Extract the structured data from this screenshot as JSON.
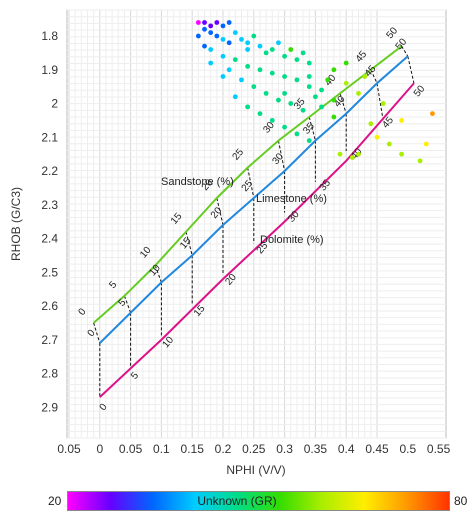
{
  "chart_data": {
    "type": "scatter",
    "xlabel": "NPHI (V/V)",
    "ylabel": "RHOB (G/C3)",
    "xlim": [
      0.05,
      0.55
    ],
    "ylim": [
      2.9,
      1.8
    ],
    "y_inverted": true,
    "grid": true,
    "xticks": [
      "0.05",
      "0",
      "0.05",
      "0.1",
      "0.15",
      "0.2",
      "0.25",
      "0.3",
      "0.35",
      "0.4",
      "0.45",
      "0.5",
      "0.55"
    ],
    "yticks": [
      "1.8",
      "1.9",
      "2",
      "2.1",
      "2.2",
      "2.3",
      "2.4",
      "2.5",
      "2.6",
      "2.7",
      "2.8",
      "2.9"
    ],
    "lithology_lines": [
      {
        "name": "Sandstone (%)",
        "color": "#66cc22",
        "points": [
          [
            -0.01,
            2.65
          ],
          [
            0.04,
            2.57
          ],
          [
            0.09,
            2.48
          ],
          [
            0.14,
            2.38
          ],
          [
            0.19,
            2.28
          ],
          [
            0.24,
            2.19
          ],
          [
            0.29,
            2.11
          ],
          [
            0.34,
            2.04
          ],
          [
            0.39,
            1.97
          ],
          [
            0.44,
            1.9
          ],
          [
            0.49,
            1.83
          ]
        ],
        "labels": [
          "0",
          "5",
          "10",
          "15",
          "20",
          "25",
          "30",
          "35",
          "40",
          "45",
          "50"
        ]
      },
      {
        "name": "Limestone (%)",
        "color": "#2288dd",
        "points": [
          [
            0.0,
            2.71
          ],
          [
            0.05,
            2.62
          ],
          [
            0.1,
            2.53
          ],
          [
            0.15,
            2.45
          ],
          [
            0.2,
            2.36
          ],
          [
            0.25,
            2.28
          ],
          [
            0.3,
            2.2
          ],
          [
            0.35,
            2.11
          ],
          [
            0.4,
            2.03
          ],
          [
            0.45,
            1.94
          ],
          [
            0.5,
            1.86
          ]
        ],
        "labels": [
          "0",
          "5",
          "10",
          "15",
          "20",
          "25",
          "30",
          "35",
          "40",
          "45",
          "50"
        ]
      },
      {
        "name": "Dolomite (%)",
        "color": "#dd1188",
        "points": [
          [
            0.0,
            2.87
          ],
          [
            0.1,
            2.7
          ],
          [
            0.2,
            2.52
          ],
          [
            0.3,
            2.35
          ],
          [
            0.4,
            2.17
          ],
          [
            0.51,
            1.94
          ]
        ],
        "labels": [
          "0",
          "5",
          "10",
          "15",
          "20",
          "25",
          "30",
          "35",
          "40",
          "45",
          "50"
        ]
      }
    ],
    "annotations": [
      "Sandstone (%)",
      "Limestone (%)",
      "Dolomite (%)"
    ],
    "colorbar": {
      "label": "Unknown (GR)",
      "min": "20",
      "max": "80",
      "colors": [
        "#ff00ff",
        "#6600ff",
        "#0066ff",
        "#00ccff",
        "#00dd88",
        "#33dd00",
        "#aaee00",
        "#ffee00",
        "#ff9900",
        "#ff3300"
      ]
    },
    "points": [
      [
        0.16,
        1.76,
        22
      ],
      [
        0.17,
        1.76,
        24
      ],
      [
        0.18,
        1.77,
        26
      ],
      [
        0.19,
        1.76,
        28
      ],
      [
        0.2,
        1.77,
        30
      ],
      [
        0.21,
        1.76,
        32
      ],
      [
        0.17,
        1.78,
        30
      ],
      [
        0.18,
        1.79,
        34
      ],
      [
        0.19,
        1.8,
        36
      ],
      [
        0.2,
        1.81,
        38
      ],
      [
        0.21,
        1.82,
        36
      ],
      [
        0.22,
        1.79,
        40
      ],
      [
        0.23,
        1.81,
        42
      ],
      [
        0.24,
        1.82,
        40
      ],
      [
        0.25,
        1.8,
        44
      ],
      [
        0.26,
        1.83,
        42
      ],
      [
        0.27,
        1.85,
        44
      ],
      [
        0.28,
        1.84,
        46
      ],
      [
        0.29,
        1.82,
        43
      ],
      [
        0.3,
        1.86,
        45
      ],
      [
        0.31,
        1.84,
        50
      ],
      [
        0.32,
        1.87,
        48
      ],
      [
        0.33,
        1.85,
        46
      ],
      [
        0.34,
        1.88,
        44
      ],
      [
        0.18,
        1.84,
        40
      ],
      [
        0.2,
        1.86,
        42
      ],
      [
        0.22,
        1.87,
        44
      ],
      [
        0.24,
        1.89,
        45
      ],
      [
        0.26,
        1.9,
        46
      ],
      [
        0.28,
        1.91,
        44
      ],
      [
        0.3,
        1.92,
        46
      ],
      [
        0.32,
        1.93,
        48
      ],
      [
        0.34,
        1.95,
        45
      ],
      [
        0.36,
        1.96,
        47
      ],
      [
        0.38,
        1.9,
        52
      ],
      [
        0.4,
        1.88,
        55
      ],
      [
        0.21,
        1.9,
        40
      ],
      [
        0.23,
        1.93,
        42
      ],
      [
        0.25,
        1.95,
        44
      ],
      [
        0.27,
        1.97,
        45
      ],
      [
        0.29,
        1.99,
        47
      ],
      [
        0.31,
        2.0,
        46
      ],
      [
        0.33,
        2.02,
        48
      ],
      [
        0.22,
        1.98,
        43
      ],
      [
        0.24,
        2.01,
        44
      ],
      [
        0.26,
        2.03,
        45
      ],
      [
        0.28,
        2.05,
        46
      ],
      [
        0.3,
        2.07,
        47
      ],
      [
        0.32,
        2.09,
        45
      ],
      [
        0.34,
        2.11,
        44
      ],
      [
        0.36,
        2.01,
        48
      ],
      [
        0.38,
        2.04,
        50
      ],
      [
        0.4,
        1.94,
        58
      ],
      [
        0.42,
        1.97,
        60
      ],
      [
        0.44,
        2.06,
        62
      ],
      [
        0.45,
        2.1,
        64
      ],
      [
        0.47,
        2.12,
        60
      ],
      [
        0.49,
        2.15,
        62
      ],
      [
        0.42,
        2.15,
        58
      ],
      [
        0.38,
        1.99,
        52
      ],
      [
        0.35,
        1.98,
        49
      ],
      [
        0.37,
        1.93,
        50
      ],
      [
        0.3,
        1.97,
        46
      ],
      [
        0.24,
        1.84,
        42
      ],
      [
        0.2,
        1.92,
        41
      ],
      [
        0.18,
        1.88,
        38
      ],
      [
        0.46,
        2.0,
        63
      ],
      [
        0.49,
        2.05,
        65
      ],
      [
        0.52,
        2.17,
        62
      ],
      [
        0.53,
        2.12,
        64
      ],
      [
        0.54,
        2.03,
        72
      ],
      [
        0.41,
        2.16,
        60
      ],
      [
        0.39,
        2.15,
        58
      ],
      [
        0.43,
        1.92,
        59
      ],
      [
        0.34,
        1.92,
        47
      ],
      [
        0.16,
        1.8,
        32
      ],
      [
        0.17,
        1.83,
        36
      ]
    ]
  }
}
